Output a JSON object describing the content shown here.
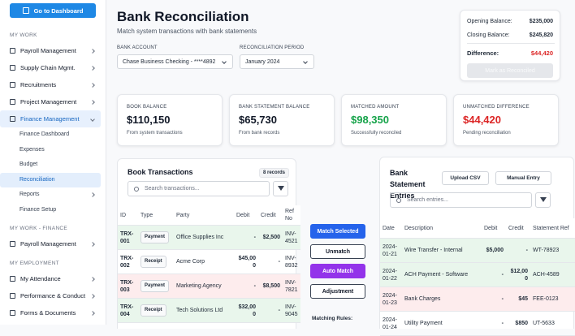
{
  "sidebar": {
    "dashboard_button": "Go to Dashboard",
    "sections": [
      {
        "title": "MY WORK",
        "items": [
          {
            "label": "Payroll Management"
          },
          {
            "label": "Supply Chain Mgmt."
          },
          {
            "label": "Recruitments"
          },
          {
            "label": "Project Management"
          },
          {
            "label": "Finance Management",
            "active": true,
            "children": [
              {
                "label": "Finance Dashboard"
              },
              {
                "label": "Expenses"
              },
              {
                "label": "Budget"
              },
              {
                "label": "Reconciliation",
                "active": true
              },
              {
                "label": "Reports"
              },
              {
                "label": "Finance Setup"
              }
            ]
          }
        ]
      },
      {
        "title": "MY WORK - FINANCE",
        "items": [
          {
            "label": "Payroll Management"
          }
        ]
      },
      {
        "title": "MY EMPLOYMENT",
        "items": [
          {
            "label": "My Attendance"
          },
          {
            "label": "Performance & Conduct"
          },
          {
            "label": "Forms & Documents"
          }
        ]
      }
    ]
  },
  "header": {
    "title": "Bank Reconciliation",
    "subtitle": "Match system transactions with bank statements"
  },
  "filters": [
    {
      "label": "BANK ACCOUNT",
      "value": "Chase Business Checking - ****4892"
    },
    {
      "label": "RECONCILIATION PERIOD",
      "value": "January 2024"
    }
  ],
  "summary": {
    "rows": [
      {
        "label": "Opening Balance:",
        "value": "$235,000"
      },
      {
        "label": "Closing Balance:",
        "value": "$245,820"
      },
      {
        "label": "Difference:",
        "value": "$44,420",
        "color": "#dc2626"
      }
    ],
    "button": "Mark as Reconciled"
  },
  "stats": [
    {
      "label": "BOOK BALANCE",
      "value": "$110,150",
      "note": "From system transactions",
      "color": "#111827"
    },
    {
      "label": "BANK STATEMENT BALANCE",
      "value": "$65,730",
      "note": "From bank records",
      "color": "#111827"
    },
    {
      "label": "MATCHED AMOUNT",
      "value": "$98,350",
      "note": "Successfully reconciled",
      "color": "#16a34a"
    },
    {
      "label": "UNMATCHED DIFFERENCE",
      "value": "$44,420",
      "note": "Pending reconciliation",
      "color": "#dc2626"
    }
  ],
  "book": {
    "title": "Book Transactions",
    "badge": "8 records",
    "search": "Search transactions...",
    "columns": [
      "ID",
      "Type",
      "Party",
      "Debit",
      "Credit",
      "Ref No"
    ],
    "rows": [
      [
        "TRX-001",
        "Payment",
        "Office Supplies Inc",
        "-",
        "$2,500",
        "INV-4521"
      ],
      [
        "TRX-002",
        "Receipt",
        "Acme Corp",
        "$45,000",
        "-",
        "INV-8932"
      ],
      [
        "TRX-003",
        "Payment",
        "Marketing Agency",
        "-",
        "$8,500",
        "INV-7821"
      ],
      [
        "TRX-004",
        "Receipt",
        "Tech Solutions Ltd",
        "$32,000",
        "-",
        "INV-9045"
      ]
    ]
  },
  "actions": [
    "Match Selected",
    "Unmatch",
    "Auto Match",
    "Adjustment"
  ],
  "matching_rules": "Matching Rules:",
  "bank": {
    "title": "Bank Statement Entries",
    "buttons": [
      "Upload CSV",
      "Manual Entry"
    ],
    "search": "Search entries...",
    "columns": [
      "Date",
      "Description",
      "Debit",
      "Credit",
      "Statement Ref"
    ],
    "rows": [
      [
        "2024-01-21",
        "Wire Transfer - Internal",
        "$5,000",
        "-",
        "WT-78923"
      ],
      [
        "2024-01-22",
        "ACH Payment - Software",
        "-",
        "$12,000",
        "ACH-4589"
      ],
      [
        "2024-01-23",
        "Bank Charges",
        "-",
        "$45",
        "FEE-0123"
      ],
      [
        "2024-01-24",
        "Utility Payment",
        "-",
        "$850",
        "UT-5633"
      ]
    ]
  }
}
